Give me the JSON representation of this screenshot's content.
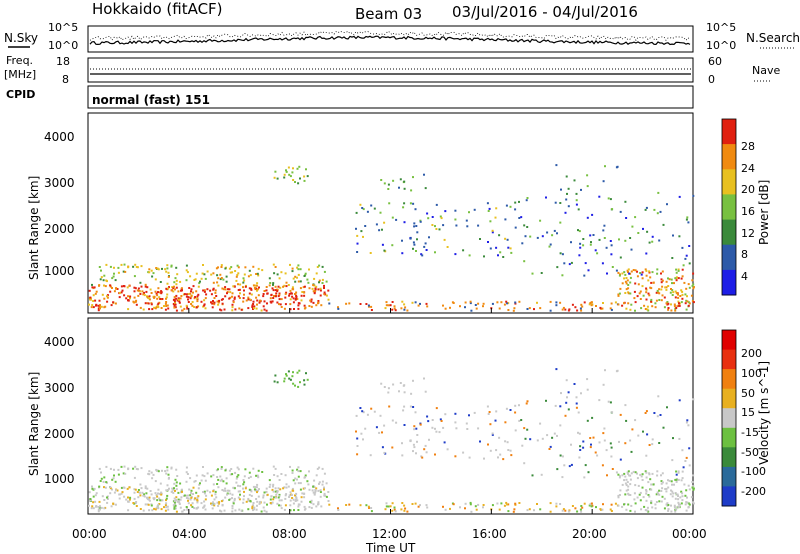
{
  "header": {
    "title": "Hokkaido (fitACF)",
    "beam": "Beam 03",
    "dates": "03/Jul/2016 - 04/Jul/2016"
  },
  "panels": {
    "nsky_label": "N.Sky",
    "nsearch_label": "N.Search",
    "noise_ticks_left": [
      "10^5",
      "10^0"
    ],
    "noise_ticks_right": [
      "10^5",
      "10^0"
    ],
    "freq_label_1": "Freq.",
    "freq_label_2": "[MHz]",
    "freq_ticks": [
      "18",
      "8"
    ],
    "nave_ticks": [
      "60",
      "0"
    ],
    "nave_label": "Nave",
    "cpid_label": "CPID",
    "cpid_value": "normal (fast) 151"
  },
  "chart_data": [
    {
      "type": "heatmap",
      "name": "power",
      "ylabel": "Slant Range [km]",
      "yticks": [
        "4000",
        "3000",
        "2000",
        "1000"
      ],
      "ylim": [
        180,
        4500
      ],
      "colorbar_label": "Power [dB]",
      "colorbar_ticks": [
        "28",
        "24",
        "20",
        "16",
        "12",
        "8",
        "4"
      ],
      "colorbar_range": [
        0,
        32
      ],
      "colors": [
        "#1e1ee6",
        "#2d5aa8",
        "#3b8a3b",
        "#78c040",
        "#e8c020",
        "#f08a10",
        "#e02010"
      ]
    },
    {
      "type": "heatmap",
      "name": "velocity",
      "ylabel": "Slant Range [km]",
      "yticks": [
        "4000",
        "3000",
        "2000",
        "1000"
      ],
      "ylim": [
        180,
        4500
      ],
      "colorbar_label": "Velocity [m s^-1]",
      "colorbar_ticks": [
        "200",
        "100",
        "50",
        "15",
        "-15",
        "-50",
        "-100",
        "-200"
      ],
      "colors": [
        "#1e3cc8",
        "#2a6a9a",
        "#3a8a3a",
        "#6cc040",
        "#c8c8c8",
        "#e8b020",
        "#f08010",
        "#e83010",
        "#e00000"
      ]
    }
  ],
  "xaxis": {
    "ticks": [
      "00:00",
      "04:00",
      "08:00",
      "12:00",
      "16:00",
      "20:00",
      "00:00"
    ],
    "xlabel": "Time UT"
  }
}
